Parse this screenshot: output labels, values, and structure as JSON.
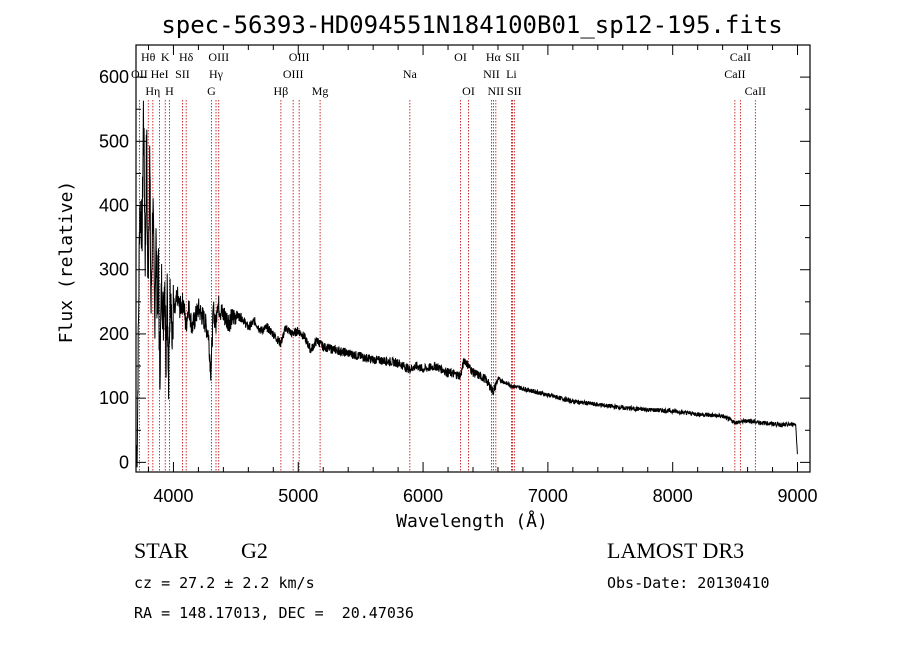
{
  "chart_data": {
    "type": "line",
    "title": "spec-56393-HD094551N184100B01_sp12-195.fits",
    "xlabel": "Wavelength (Å)",
    "ylabel": "Flux (relative)",
    "xlim": [
      3700,
      9100
    ],
    "ylim": [
      -15,
      650
    ],
    "xticks": [
      4000,
      5000,
      6000,
      7000,
      8000,
      9000
    ],
    "yticks": [
      0,
      100,
      200,
      300,
      400,
      500,
      600
    ],
    "grid": false,
    "series": [
      {
        "name": "spectrum",
        "x": [
          3700,
          3710,
          3730,
          3750,
          3760,
          3775,
          3785,
          3795,
          3810,
          3820,
          3835,
          3850,
          3860,
          3870,
          3880,
          3890,
          3905,
          3920,
          3930,
          3940,
          3950,
          3960,
          3970,
          3980,
          3990,
          4000,
          4010,
          4030,
          4050,
          4080,
          4100,
          4120,
          4150,
          4200,
          4250,
          4280,
          4300,
          4320,
          4340,
          4350,
          4380,
          4420,
          4450,
          4500,
          4550,
          4600,
          4650,
          4700,
          4750,
          4800,
          4860,
          4900,
          4950,
          5000,
          5050,
          5100,
          5150,
          5200,
          5300,
          5400,
          5500,
          5600,
          5700,
          5800,
          5890,
          5950,
          6000,
          6100,
          6200,
          6300,
          6330,
          6400,
          6500,
          6563,
          6600,
          6700,
          6800,
          7000,
          7200,
          7400,
          7600,
          7800,
          8000,
          8200,
          8400,
          8500,
          8600,
          8700,
          8800,
          8900,
          8985,
          9000
        ],
        "y": [
          0,
          30,
          400,
          360,
          560,
          300,
          520,
          260,
          480,
          230,
          410,
          220,
          350,
          240,
          300,
          130,
          280,
          220,
          300,
          160,
          300,
          100,
          230,
          290,
          170,
          250,
          230,
          260,
          240,
          250,
          210,
          245,
          210,
          240,
          220,
          200,
          140,
          240,
          210,
          250,
          235,
          225,
          220,
          230,
          225,
          210,
          220,
          205,
          210,
          200,
          185,
          210,
          200,
          205,
          195,
          175,
          190,
          180,
          175,
          170,
          165,
          160,
          158,
          155,
          145,
          150,
          145,
          150,
          140,
          135,
          160,
          140,
          130,
          110,
          130,
          120,
          115,
          105,
          95,
          90,
          85,
          82,
          80,
          75,
          72,
          62,
          65,
          62,
          60,
          58,
          60,
          10
        ]
      }
    ],
    "lines": [
      {
        "label": "OII",
        "wl": 3727,
        "row": 1
      },
      {
        "label": "Hθ",
        "wl": 3798,
        "row": 0
      },
      {
        "label": "Hη",
        "wl": 3835,
        "row": 2
      },
      {
        "label": "HeI",
        "wl": 3889,
        "row": 1
      },
      {
        "label": "K",
        "wl": 3934,
        "row": 0
      },
      {
        "label": "H",
        "wl": 3968,
        "row": 2
      },
      {
        "label": "SII",
        "wl": 4072,
        "row": 1
      },
      {
        "label": "Hδ",
        "wl": 4102,
        "row": 0
      },
      {
        "label": "G",
        "wl": 4305,
        "row": 2
      },
      {
        "label": "Hγ",
        "wl": 4341,
        "row": 1
      },
      {
        "label": "OIII",
        "wl": 4363,
        "row": 0
      },
      {
        "label": "Hβ",
        "wl": 4861,
        "row": 2
      },
      {
        "label": "OIII",
        "wl": 4959,
        "row": 1
      },
      {
        "label": "OIII",
        "wl": 5007,
        "row": 0
      },
      {
        "label": "Mg",
        "wl": 5175,
        "row": 2
      },
      {
        "label": "Na",
        "wl": 5894,
        "row": 1
      },
      {
        "label": "OI",
        "wl": 6300,
        "row": 0
      },
      {
        "label": "OI",
        "wl": 6364,
        "row": 2
      },
      {
        "label": "NII",
        "wl": 6548,
        "row": 1
      },
      {
        "label": "Hα",
        "wl": 6563,
        "row": 0
      },
      {
        "label": "NII",
        "wl": 6583,
        "row": 2
      },
      {
        "label": "Li",
        "wl": 6708,
        "row": 1
      },
      {
        "label": "SII",
        "wl": 6717,
        "row": 0
      },
      {
        "label": "SII",
        "wl": 6731,
        "row": 2
      },
      {
        "label": "CaII",
        "wl": 8498,
        "row": 1
      },
      {
        "label": "CaII",
        "wl": 8542,
        "row": 0
      },
      {
        "label": "CaII",
        "wl": 8662,
        "row": 2
      }
    ]
  },
  "info": {
    "object_class": "STAR",
    "subclass": "G2",
    "survey": "LAMOST DR3",
    "redshift": "cz = 27.2 ± 2.2 km/s",
    "obs_date": "Obs-Date: 20130410",
    "coords": "RA = 148.17013, DEC =  20.47036"
  },
  "colors": {
    "spectrum": "#000000",
    "lines": "#c00000",
    "axes": "#000000"
  }
}
